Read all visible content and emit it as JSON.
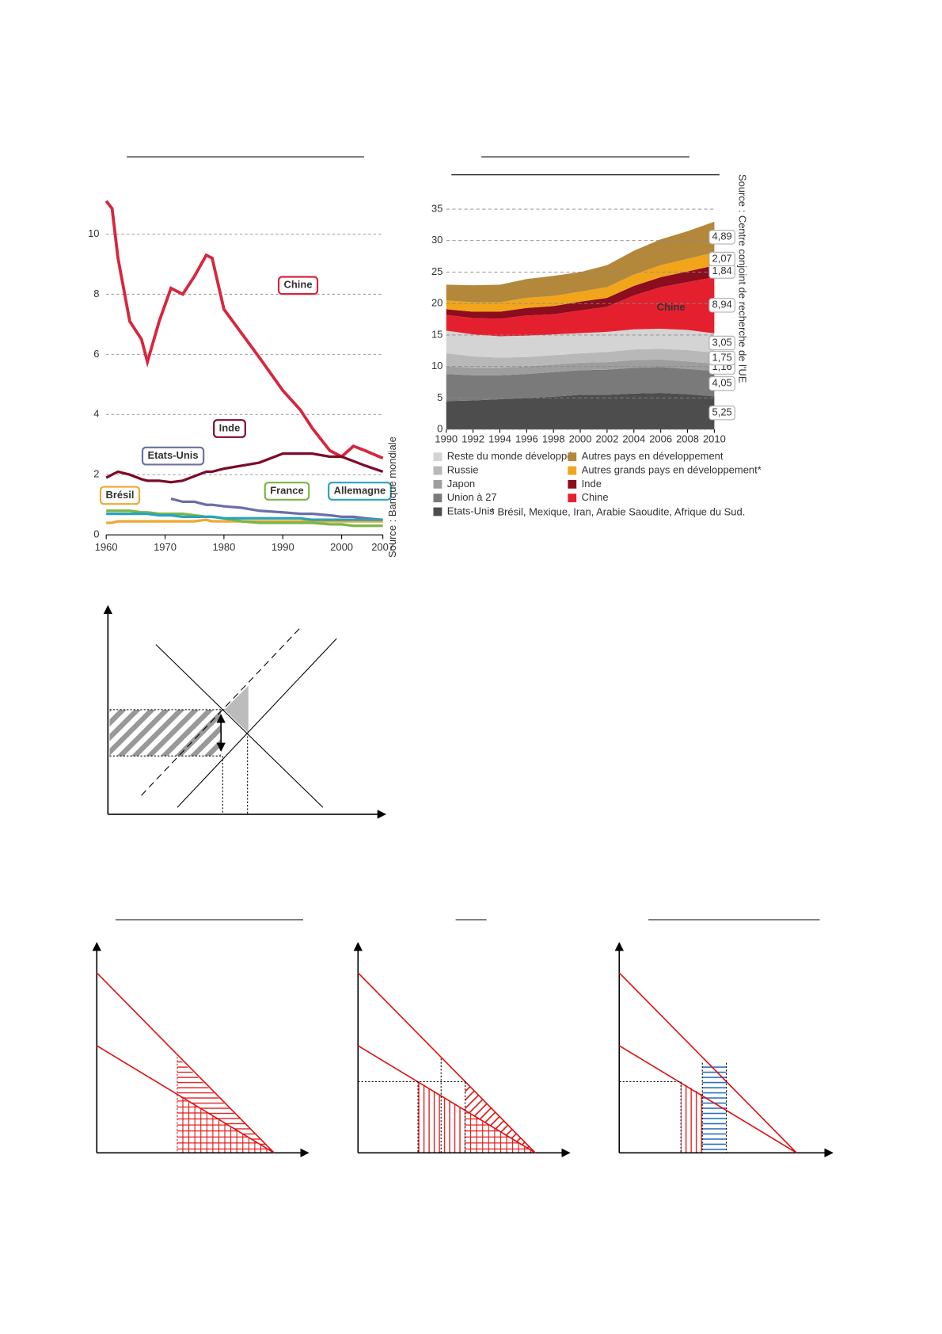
{
  "chart_data": [
    {
      "type": "line",
      "source": "Source : Banque mondiale",
      "x": [
        1960,
        1961,
        1962,
        1964,
        1966,
        1967,
        1969,
        1971,
        1973,
        1975,
        1977,
        1978,
        1980,
        1983,
        1986,
        1990,
        1993,
        1995,
        1998,
        2000,
        2002,
        2004,
        2007
      ],
      "xlim": [
        1960,
        2007
      ],
      "xticks": [
        1960,
        1970,
        1980,
        1990,
        2000,
        2007
      ],
      "ylim": [
        0,
        11.2
      ],
      "yticks": [
        0,
        2,
        4,
        6,
        8,
        10
      ],
      "grid": true,
      "series": [
        {
          "name": "Chine",
          "color": "#d7263d",
          "values": [
            11.1,
            10.85,
            9.2,
            7.1,
            6.5,
            5.75,
            7.1,
            8.2,
            8.0,
            8.6,
            9.3,
            9.2,
            7.5,
            6.7,
            5.9,
            4.8,
            4.15,
            3.55,
            2.8,
            2.6,
            2.95,
            2.8,
            2.55
          ]
        },
        {
          "name": "Inde",
          "color": "#7d0a2a",
          "values": [
            1.9,
            2.0,
            2.1,
            2.0,
            1.85,
            1.8,
            1.8,
            1.75,
            1.8,
            1.95,
            2.1,
            2.1,
            2.2,
            2.3,
            2.4,
            2.7,
            2.7,
            2.7,
            2.6,
            2.6,
            2.45,
            2.3,
            2.1
          ]
        },
        {
          "name": "Etats-Unis",
          "color": "#6b6fa8",
          "values": [
            null,
            null,
            null,
            null,
            null,
            null,
            null,
            1.2,
            1.1,
            1.1,
            1.0,
            1.0,
            0.95,
            0.9,
            0.8,
            0.75,
            0.7,
            0.7,
            0.65,
            0.6,
            0.6,
            0.55,
            0.5
          ]
        },
        {
          "name": "Brésil",
          "color": "#f0a830",
          "values": [
            0.4,
            0.4,
            0.45,
            0.45,
            0.45,
            0.45,
            0.45,
            0.45,
            0.45,
            0.45,
            0.5,
            0.45,
            0.45,
            0.45,
            0.45,
            0.45,
            0.45,
            0.45,
            0.45,
            0.45,
            0.45,
            0.45,
            0.45
          ]
        },
        {
          "name": "France",
          "color": "#7ab648",
          "values": [
            0.8,
            0.8,
            0.8,
            0.8,
            0.75,
            0.75,
            0.7,
            0.7,
            0.7,
            0.65,
            0.6,
            0.6,
            0.55,
            0.45,
            0.4,
            0.4,
            0.4,
            0.4,
            0.35,
            0.35,
            0.3,
            0.3,
            0.3
          ]
        },
        {
          "name": "Allemagne",
          "color": "#2aa3b8",
          "values": [
            0.7,
            0.7,
            0.7,
            0.7,
            0.7,
            0.7,
            0.65,
            0.65,
            0.6,
            0.6,
            0.6,
            0.6,
            0.55,
            0.55,
            0.55,
            0.55,
            0.55,
            0.5,
            0.5,
            0.5,
            0.5,
            0.5,
            0.5
          ]
        }
      ]
    },
    {
      "type": "stacked-area",
      "source": "Source : Centre conjoint de recherche de l'UE",
      "footnote": "* Brésil, Mexique, Iran, Arabie Saoudite, Afrique du Sud.",
      "x": [
        1990,
        1992,
        1994,
        1996,
        1998,
        2000,
        2002,
        2004,
        2006,
        2008,
        2010
      ],
      "xlim": [
        1990,
        2010
      ],
      "xticks": [
        1990,
        1992,
        1994,
        1996,
        1998,
        2000,
        2002,
        2004,
        2006,
        2008,
        2010
      ],
      "ylim": [
        0,
        35
      ],
      "yticks": [
        0,
        5,
        10,
        15,
        20,
        25,
        30,
        35
      ],
      "grid": true,
      "series": [
        {
          "name": "Etats-Unis",
          "color": "#4d4d4d",
          "values": [
            4.5,
            4.6,
            4.8,
            5.0,
            5.2,
            5.5,
            5.5,
            5.7,
            5.8,
            5.6,
            5.25
          ],
          "value_labels": [
            null,
            null,
            null,
            null,
            null,
            null,
            null,
            null,
            null,
            null,
            "5,25"
          ]
        },
        {
          "name": "Union à 27",
          "color": "#7a7a7a",
          "values": [
            4.3,
            4.0,
            3.8,
            3.8,
            3.9,
            3.9,
            4.0,
            4.1,
            4.1,
            4.0,
            4.05
          ],
          "value_labels": [
            null,
            null,
            null,
            null,
            null,
            null,
            null,
            null,
            null,
            null,
            "4,05"
          ]
        },
        {
          "name": "Japon",
          "color": "#9e9e9e",
          "values": [
            1.2,
            1.2,
            1.2,
            1.2,
            1.2,
            1.2,
            1.2,
            1.2,
            1.2,
            1.2,
            1.16
          ],
          "value_labels": [
            null,
            null,
            null,
            null,
            null,
            null,
            null,
            null,
            null,
            null,
            "1,16"
          ]
        },
        {
          "name": "Russie",
          "color": "#b8b8b8",
          "values": [
            2.1,
            1.8,
            1.6,
            1.5,
            1.5,
            1.5,
            1.6,
            1.7,
            1.7,
            1.8,
            1.75
          ],
          "value_labels": [
            null,
            null,
            null,
            null,
            null,
            null,
            null,
            null,
            null,
            null,
            "1,75"
          ]
        },
        {
          "name": "Reste du monde développé",
          "color": "#d4d4d4",
          "values": [
            3.6,
            3.5,
            3.4,
            3.4,
            3.3,
            3.2,
            3.2,
            3.2,
            3.2,
            3.2,
            3.05
          ],
          "value_labels": [
            null,
            null,
            null,
            null,
            null,
            null,
            null,
            null,
            null,
            null,
            "3,05"
          ]
        },
        {
          "name": "Chine",
          "color": "#e5202e",
          "values": [
            2.5,
            2.6,
            2.8,
            3.2,
            3.2,
            3.6,
            4.0,
            5.4,
            6.6,
            7.6,
            8.94
          ],
          "value_labels": [
            null,
            null,
            null,
            null,
            null,
            null,
            null,
            null,
            null,
            null,
            "8,94"
          ]
        },
        {
          "name": "Inde",
          "color": "#8b0d1e",
          "values": [
            0.9,
            1.0,
            1.1,
            1.2,
            1.3,
            1.4,
            1.4,
            1.5,
            1.6,
            1.7,
            1.84
          ],
          "value_labels": [
            null,
            null,
            null,
            null,
            null,
            null,
            null,
            null,
            null,
            null,
            "1,84"
          ]
        },
        {
          "name": "Autres grands pays en développement*",
          "color": "#f2a51a",
          "values": [
            1.4,
            1.5,
            1.5,
            1.6,
            1.6,
            1.6,
            1.7,
            1.8,
            1.9,
            2.0,
            2.07
          ],
          "value_labels": [
            null,
            null,
            null,
            null,
            null,
            null,
            null,
            null,
            null,
            null,
            "2,07"
          ]
        },
        {
          "name": "Autres pays en développement",
          "color": "#b3883a",
          "values": [
            2.5,
            2.7,
            2.8,
            3.0,
            3.2,
            3.1,
            3.5,
            3.8,
            4.1,
            4.4,
            4.89
          ],
          "value_labels": [
            null,
            null,
            null,
            null,
            null,
            null,
            null,
            null,
            null,
            null,
            "4,89"
          ]
        }
      ]
    }
  ]
}
